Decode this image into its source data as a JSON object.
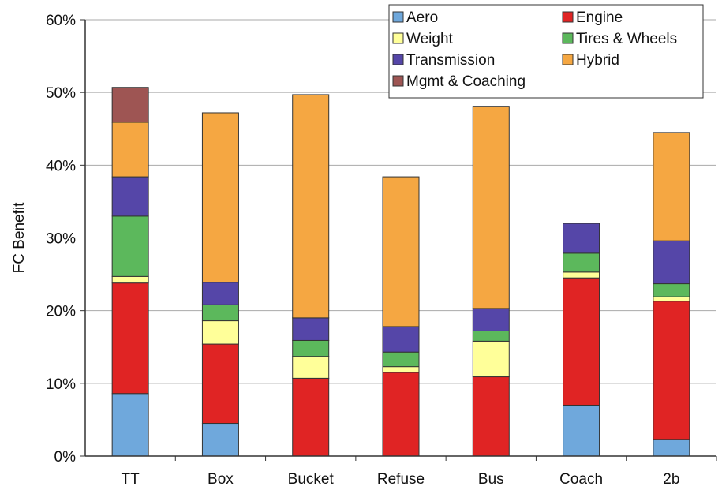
{
  "chart_data": {
    "type": "bar",
    "stacked": true,
    "title": "",
    "xlabel": "",
    "ylabel": "FC Benefit",
    "ylim": [
      0,
      60
    ],
    "yticks": [
      "0%",
      "10%",
      "20%",
      "30%",
      "40%",
      "50%",
      "60%"
    ],
    "grid": true,
    "legend_position": "top-right",
    "categories": [
      "TT",
      "Box",
      "Bucket",
      "Refuse",
      "Bus",
      "Coach",
      "2b"
    ],
    "series": [
      {
        "name": "Aero",
        "color": "#6fa8dc",
        "values": [
          8.6,
          4.5,
          0,
          0,
          0,
          7.0,
          2.3
        ]
      },
      {
        "name": "Engine",
        "color": "#e02424",
        "values": [
          15.2,
          10.9,
          10.7,
          11.5,
          10.9,
          17.5,
          19.0
        ]
      },
      {
        "name": "Weight",
        "color": "#ffff99",
        "values": [
          0.9,
          3.2,
          3.0,
          0.8,
          4.9,
          0.8,
          0.6
        ]
      },
      {
        "name": "Tires & Wheels",
        "color": "#5cb85c",
        "values": [
          8.3,
          2.2,
          2.2,
          2.0,
          1.4,
          2.6,
          1.8
        ]
      },
      {
        "name": "Transmission",
        "color": "#5546a8",
        "values": [
          5.4,
          3.1,
          3.1,
          3.5,
          3.1,
          4.1,
          5.9
        ]
      },
      {
        "name": "Hybrid",
        "color": "#f5a742",
        "values": [
          7.5,
          23.3,
          30.7,
          20.6,
          27.8,
          0,
          14.9
        ]
      },
      {
        "name": "Mgmt & Coaching",
        "color": "#9e5553",
        "values": [
          4.8,
          0,
          0,
          0,
          0,
          0,
          0
        ]
      }
    ]
  }
}
